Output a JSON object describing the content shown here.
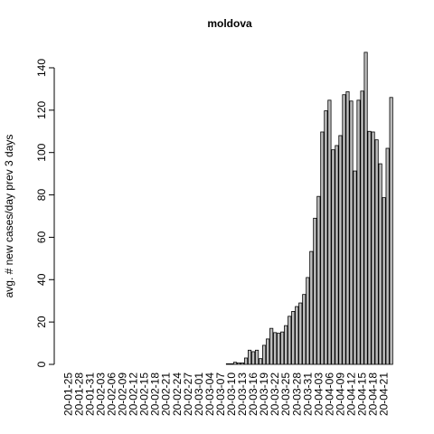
{
  "chart_data": {
    "type": "bar",
    "title": "moldova",
    "ylabel": "avg. # new cases/day prev  3  days",
    "categories": [
      "20-01-25",
      null,
      null,
      "20-01-28",
      null,
      null,
      "20-01-31",
      null,
      null,
      "20-02-03",
      null,
      null,
      "20-02-06",
      null,
      null,
      "20-02-09",
      null,
      null,
      "20-02-12",
      null,
      null,
      "20-02-15",
      null,
      null,
      "20-02-18",
      null,
      null,
      "20-02-21",
      null,
      null,
      "20-02-24",
      null,
      null,
      "20-02-27",
      null,
      null,
      "20-03-01",
      null,
      null,
      "20-03-04",
      null,
      null,
      "20-03-07",
      null,
      null,
      "20-03-10",
      null,
      null,
      "20-03-13",
      null,
      null,
      "20-03-16",
      null,
      null,
      "20-03-19",
      null,
      null,
      "20-03-22",
      null,
      null,
      "20-03-25",
      null,
      null,
      "20-03-28",
      null,
      null,
      "20-03-31",
      null,
      null,
      "20-04-03",
      null,
      null,
      "20-04-06",
      null,
      null,
      "20-04-09",
      null,
      null,
      "20-04-12",
      null,
      null,
      "20-04-15",
      null,
      null,
      "20-04-18",
      null,
      null,
      "20-04-21",
      null,
      null
    ],
    "values": [
      0,
      0,
      0,
      0,
      0,
      0,
      0,
      0,
      0,
      0,
      0,
      0,
      0,
      0,
      0,
      0,
      0,
      0,
      0,
      0,
      0,
      0,
      0,
      0,
      0,
      0,
      0,
      0,
      0,
      0,
      0,
      0,
      0,
      0,
      0,
      0,
      0,
      0,
      0,
      0,
      0,
      0,
      0,
      0,
      0.3,
      0.3,
      1,
      0.7,
      0.7,
      3,
      6.7,
      6,
      6.7,
      2.7,
      9,
      12,
      17,
      15,
      14.7,
      15.3,
      18.3,
      22.7,
      25,
      27.3,
      29,
      33,
      41,
      53.3,
      69,
      79.3,
      109.7,
      119.7,
      124.7,
      101.3,
      103.3,
      108,
      127.3,
      128.7,
      124.3,
      91.3,
      124.7,
      129,
      147.3,
      110,
      109.7,
      106,
      94.7,
      78.7,
      102,
      126
    ],
    "color": "#bebebe",
    "ylim": [
      0,
      153
    ],
    "yticks": [
      0,
      20,
      40,
      60,
      80,
      100,
      120,
      140
    ]
  }
}
